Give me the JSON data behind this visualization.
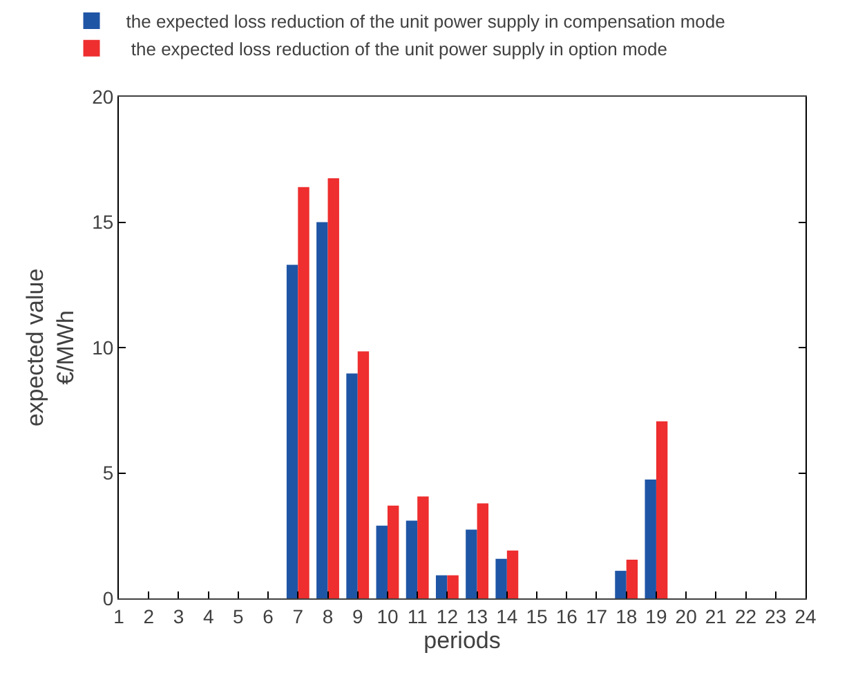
{
  "chart_data": {
    "type": "bar",
    "xlabel": "periods",
    "ylabel": "expected value\n€/MWh",
    "x": [
      1,
      2,
      3,
      4,
      5,
      6,
      7,
      8,
      9,
      10,
      11,
      12,
      13,
      14,
      15,
      16,
      17,
      18,
      19,
      20,
      21,
      22,
      23,
      24
    ],
    "series": [
      {
        "name": "the expected loss reduction of the unit power supply in compensation mode",
        "color": "#1f55a5",
        "values": [
          0,
          0,
          0,
          0,
          0,
          0,
          13.3,
          15.0,
          8.97,
          2.9,
          3.1,
          0.92,
          2.74,
          1.58,
          0,
          0,
          0,
          1.1,
          4.74,
          0,
          0,
          0,
          0,
          0
        ]
      },
      {
        "name": " the expected loss reduction of the unit power supply in option mode",
        "color": "#ee2e2f",
        "values": [
          0,
          0,
          0,
          0,
          0,
          0,
          16.4,
          16.75,
          9.85,
          3.7,
          4.06,
          0.92,
          3.79,
          1.91,
          0,
          0,
          0,
          1.54,
          7.06,
          0,
          0,
          0,
          0,
          0
        ]
      }
    ],
    "xlim": [
      1,
      24
    ],
    "xticks": [
      1,
      2,
      3,
      4,
      5,
      6,
      7,
      8,
      9,
      10,
      11,
      12,
      13,
      14,
      15,
      16,
      17,
      18,
      19,
      20,
      21,
      22,
      23,
      24
    ],
    "ylim": [
      0,
      20
    ],
    "yticks": [
      0,
      5,
      10,
      15,
      20
    ],
    "legend": "top"
  }
}
